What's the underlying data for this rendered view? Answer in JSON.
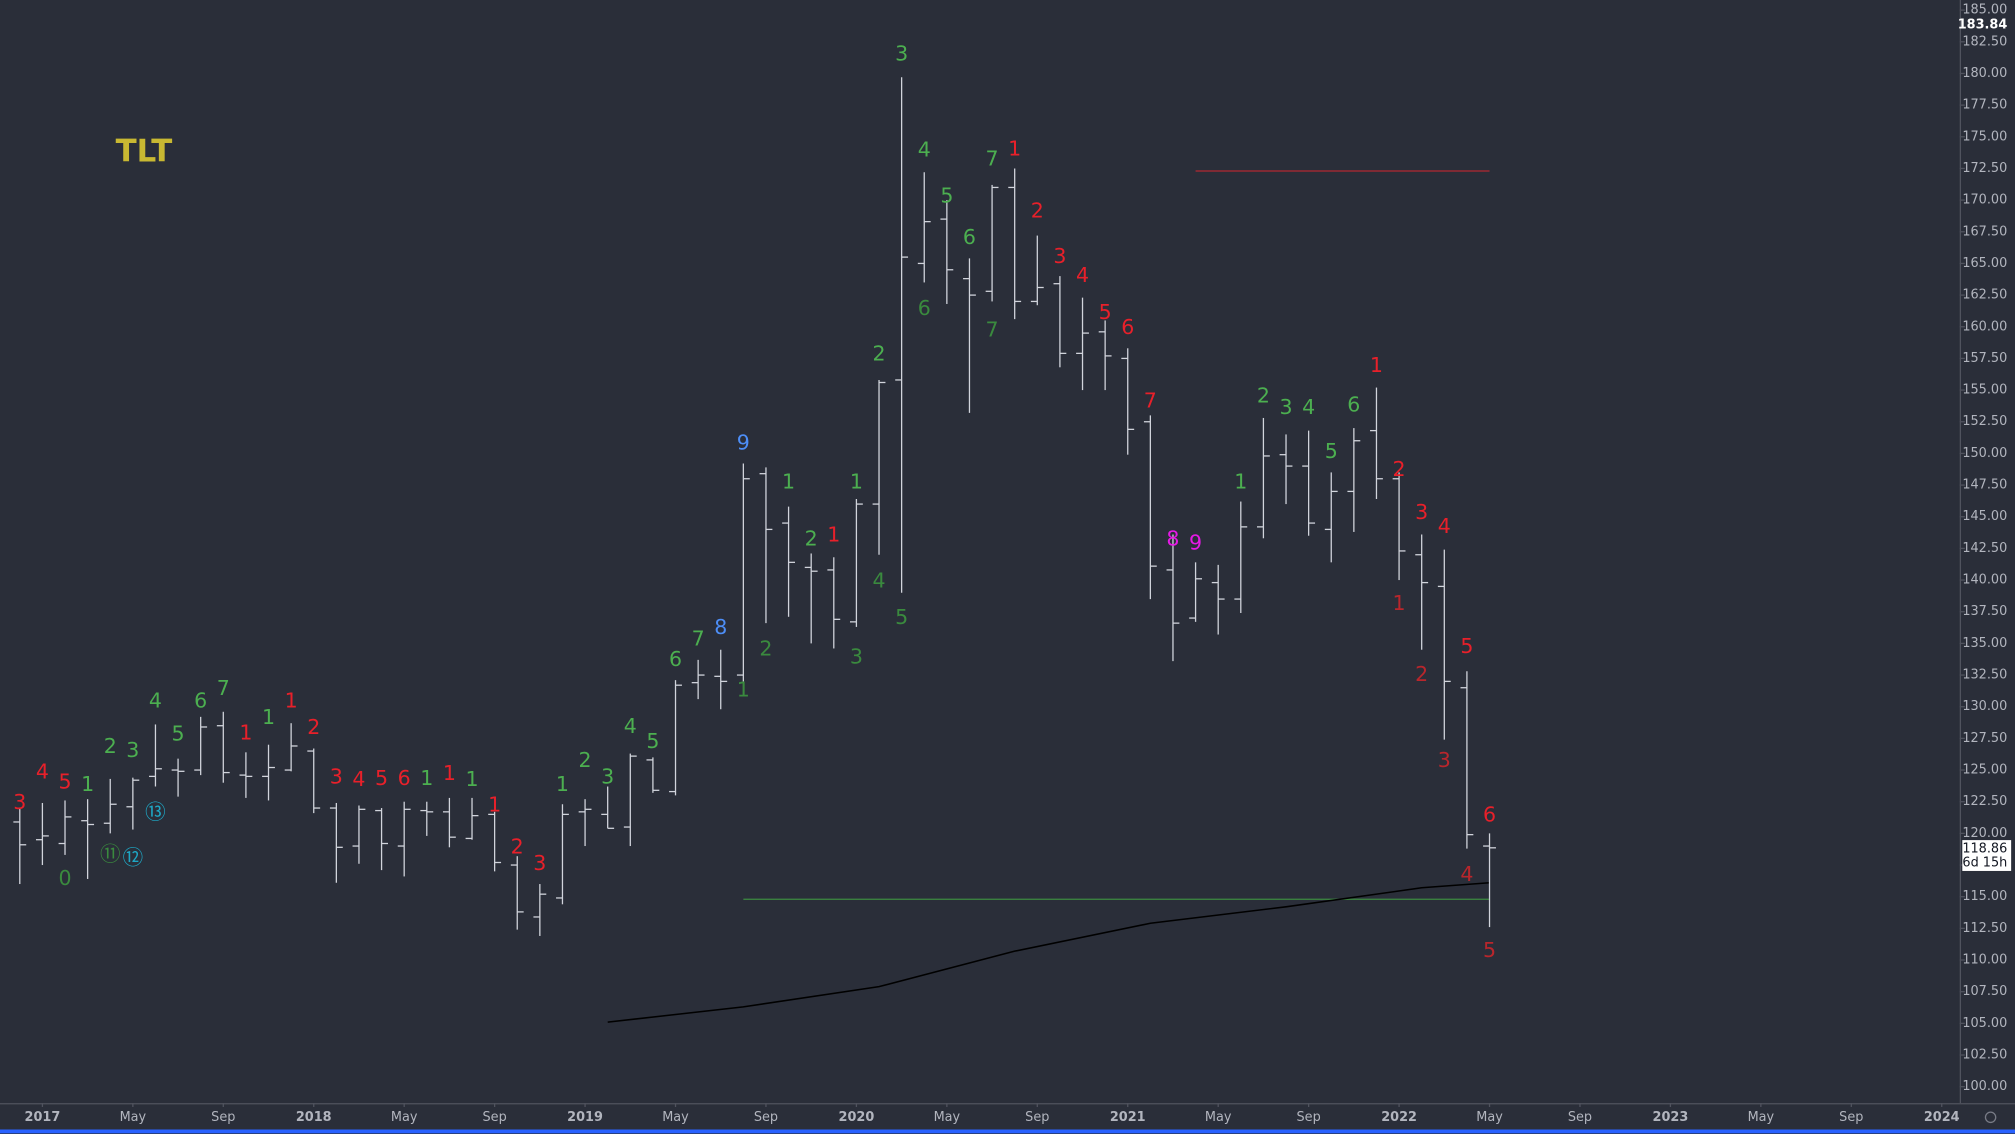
{
  "chart_data": {
    "type": "ohlc",
    "title": "TLT",
    "bar_color": "#d1d4dc",
    "x": [
      "2016-12",
      "2017-01",
      "2017-02",
      "2017-03",
      "2017-04",
      "2017-05",
      "2017-06",
      "2017-07",
      "2017-08",
      "2017-09",
      "2017-10",
      "2017-11",
      "2017-12",
      "2018-01",
      "2018-02",
      "2018-03",
      "2018-04",
      "2018-05",
      "2018-06",
      "2018-07",
      "2018-08",
      "2018-09",
      "2018-10",
      "2018-11",
      "2018-12",
      "2019-01",
      "2019-02",
      "2019-03",
      "2019-04",
      "2019-05",
      "2019-06",
      "2019-07",
      "2019-08",
      "2019-09",
      "2019-10",
      "2019-11",
      "2019-12",
      "2020-01",
      "2020-02",
      "2020-03",
      "2020-04",
      "2020-05",
      "2020-06",
      "2020-07",
      "2020-08",
      "2020-09",
      "2020-10",
      "2020-11",
      "2020-12",
      "2021-01",
      "2021-02",
      "2021-03",
      "2021-04",
      "2021-05",
      "2021-06",
      "2021-07",
      "2021-08",
      "2021-09",
      "2021-10",
      "2021-11",
      "2021-12",
      "2022-01",
      "2022-02",
      "2022-03",
      "2022-04",
      "2022-05"
    ],
    "open": [
      120.9,
      119.5,
      119.2,
      121.0,
      120.8,
      122.1,
      124.5,
      125.0,
      125.0,
      128.5,
      124.6,
      124.5,
      125.0,
      126.5,
      122.0,
      119.0,
      121.8,
      119.0,
      121.8,
      121.7,
      119.6,
      121.5,
      117.5,
      113.4,
      114.9,
      121.7,
      121.5,
      120.5,
      125.8,
      123.3,
      131.9,
      132.4,
      132.5,
      148.4,
      144.5,
      141.0,
      140.8,
      136.7,
      146.0,
      155.8,
      165.0,
      168.5,
      163.8,
      162.8,
      171.0,
      162.0,
      163.4,
      157.9,
      159.6,
      157.5,
      152.5,
      140.8,
      137.0,
      139.8,
      138.5,
      144.2,
      149.9,
      149.0,
      144.0,
      147.0,
      151.8,
      148.0,
      142.0,
      139.5,
      131.5,
      119.0
    ],
    "high": [
      122.0,
      122.4,
      122.6,
      122.7,
      124.3,
      124.4,
      128.6,
      125.9,
      129.2,
      129.6,
      126.4,
      127.0,
      128.7,
      126.7,
      122.4,
      122.2,
      122.0,
      122.5,
      122.5,
      122.8,
      122.8,
      121.7,
      118.2,
      116.0,
      122.3,
      122.7,
      123.7,
      126.3,
      126.0,
      132.1,
      133.7,
      134.5,
      149.2,
      148.9,
      145.8,
      142.1,
      141.8,
      146.4,
      155.8,
      179.7,
      172.2,
      170.0,
      165.4,
      171.2,
      172.5,
      167.2,
      164.0,
      162.3,
      160.5,
      158.3,
      153.0,
      143.6,
      141.4,
      141.2,
      146.2,
      152.8,
      151.5,
      151.8,
      148.5,
      152.0,
      155.2,
      148.5,
      143.6,
      142.4,
      132.8,
      120.0
    ],
    "low": [
      116.0,
      117.5,
      118.3,
      116.4,
      120.0,
      120.3,
      123.7,
      122.9,
      124.6,
      124.0,
      122.8,
      122.6,
      124.9,
      121.6,
      116.1,
      117.6,
      117.1,
      116.6,
      119.8,
      118.9,
      119.5,
      117.0,
      112.4,
      111.9,
      114.4,
      119.0,
      120.4,
      119.0,
      123.2,
      123.0,
      130.6,
      129.8,
      132.0,
      136.6,
      137.1,
      135.0,
      134.6,
      136.3,
      142.0,
      139.0,
      163.5,
      161.8,
      153.2,
      162.0,
      160.6,
      161.7,
      156.8,
      155.0,
      155.0,
      149.9,
      138.5,
      133.6,
      136.7,
      135.7,
      137.4,
      143.3,
      146.0,
      143.5,
      141.4,
      143.8,
      146.4,
      140.0,
      134.5,
      127.4,
      118.8,
      112.6
    ],
    "close": [
      119.1,
      119.8,
      121.3,
      120.7,
      122.3,
      124.2,
      125.1,
      124.9,
      128.4,
      124.8,
      124.5,
      125.2,
      126.9,
      122.0,
      118.9,
      121.9,
      119.2,
      121.9,
      121.7,
      119.7,
      121.4,
      117.7,
      113.8,
      115.2,
      121.5,
      121.9,
      120.4,
      126.1,
      123.4,
      131.7,
      132.5,
      132.0,
      148.0,
      144.0,
      141.4,
      140.7,
      136.9,
      146.0,
      155.6,
      165.5,
      168.3,
      164.5,
      162.5,
      171.0,
      162.0,
      163.1,
      157.9,
      159.5,
      157.7,
      151.9,
      141.1,
      136.6,
      140.1,
      138.5,
      144.2,
      149.8,
      149.0,
      144.5,
      147.0,
      151.0,
      148.0,
      142.3,
      139.8,
      132.0,
      119.9,
      118.86
    ],
    "moving_average": {
      "x": [
        "2019-02",
        "2019-08",
        "2020-02",
        "2020-08",
        "2021-02",
        "2021-08",
        "2022-02",
        "2022-05"
      ],
      "values": [
        105.1,
        106.3,
        107.9,
        110.7,
        112.9,
        114.2,
        115.7,
        116.1
      ],
      "color": "#000000"
    },
    "hlines": [
      {
        "y": 172.3,
        "x": [
          "2021-04",
          "2022-05"
        ],
        "color": "#b22833"
      },
      {
        "y": 114.8,
        "x": [
          "2019-08",
          "2022-05"
        ],
        "color": "#3d8b40"
      }
    ],
    "annotations": [
      {
        "text": "3",
        "x": "2016-12",
        "y": 122.4,
        "color": "#e8202a"
      },
      {
        "text": "4",
        "x": "2017-01",
        "y": 124.8,
        "color": "#e8202a"
      },
      {
        "text": "5",
        "x": "2017-02",
        "y": 124.0,
        "color": "#e8202a"
      },
      {
        "text": "0",
        "x": "2017-02",
        "y": 116.4,
        "color": "#3a8a3e"
      },
      {
        "text": "1",
        "x": "2017-03",
        "y": 123.8,
        "color": "#4caf50"
      },
      {
        "text": "⑪",
        "x": "2017-04",
        "y": 118.3,
        "color": "#3a8a3e"
      },
      {
        "text": "2",
        "x": "2017-04",
        "y": 126.8,
        "color": "#4caf50"
      },
      {
        "text": "⑫",
        "x": "2017-05",
        "y": 118.0,
        "color": "#1ea7c5"
      },
      {
        "text": "3",
        "x": "2017-05",
        "y": 126.5,
        "color": "#4caf50"
      },
      {
        "text": "⑬",
        "x": "2017-06",
        "y": 121.6,
        "color": "#1ea7c5"
      },
      {
        "text": "4",
        "x": "2017-06",
        "y": 130.4,
        "color": "#4caf50"
      },
      {
        "text": "5",
        "x": "2017-07",
        "y": 127.8,
        "color": "#4caf50"
      },
      {
        "text": "6",
        "x": "2017-08",
        "y": 130.4,
        "color": "#4caf50"
      },
      {
        "text": "7",
        "x": "2017-09",
        "y": 131.4,
        "color": "#4caf50"
      },
      {
        "text": "1",
        "x": "2017-10",
        "y": 127.9,
        "color": "#e8202a"
      },
      {
        "text": "1",
        "x": "2017-11",
        "y": 129.1,
        "color": "#4caf50"
      },
      {
        "text": "1",
        "x": "2017-12",
        "y": 130.4,
        "color": "#e8202a"
      },
      {
        "text": "2",
        "x": "2018-01",
        "y": 128.3,
        "color": "#e8202a"
      },
      {
        "text": "3",
        "x": "2018-02",
        "y": 124.4,
        "color": "#e8202a"
      },
      {
        "text": "4",
        "x": "2018-03",
        "y": 124.2,
        "color": "#e8202a"
      },
      {
        "text": "5",
        "x": "2018-04",
        "y": 124.3,
        "color": "#e8202a"
      },
      {
        "text": "6",
        "x": "2018-05",
        "y": 124.3,
        "color": "#e8202a"
      },
      {
        "text": "1",
        "x": "2018-06",
        "y": 124.3,
        "color": "#4caf50"
      },
      {
        "text": "1",
        "x": "2018-07",
        "y": 124.7,
        "color": "#e8202a"
      },
      {
        "text": "1",
        "x": "2018-08",
        "y": 124.2,
        "color": "#4caf50"
      },
      {
        "text": "1",
        "x": "2018-09",
        "y": 122.2,
        "color": "#e8202a"
      },
      {
        "text": "2",
        "x": "2018-10",
        "y": 118.9,
        "color": "#e8202a"
      },
      {
        "text": "3",
        "x": "2018-11",
        "y": 117.6,
        "color": "#e8202a"
      },
      {
        "text": "1",
        "x": "2018-12",
        "y": 123.8,
        "color": "#4caf50"
      },
      {
        "text": "2",
        "x": "2019-01",
        "y": 125.7,
        "color": "#4caf50"
      },
      {
        "text": "3",
        "x": "2019-02",
        "y": 124.4,
        "color": "#4caf50"
      },
      {
        "text": "4",
        "x": "2019-03",
        "y": 128.4,
        "color": "#4caf50"
      },
      {
        "text": "5",
        "x": "2019-04",
        "y": 127.2,
        "color": "#4caf50"
      },
      {
        "text": "6",
        "x": "2019-05",
        "y": 133.7,
        "color": "#4caf50"
      },
      {
        "text": "7",
        "x": "2019-06",
        "y": 135.3,
        "color": "#4caf50"
      },
      {
        "text": "8",
        "x": "2019-07",
        "y": 136.2,
        "color": "#4d8ef7"
      },
      {
        "text": "9",
        "x": "2019-08",
        "y": 150.8,
        "color": "#4d8ef7"
      },
      {
        "text": "1",
        "x": "2019-08",
        "y": 131.3,
        "color": "#3a8a3e"
      },
      {
        "text": "2",
        "x": "2019-09",
        "y": 134.5,
        "color": "#3a8a3e"
      },
      {
        "text": "1",
        "x": "2019-10",
        "y": 147.7,
        "color": "#4caf50"
      },
      {
        "text": "2",
        "x": "2019-11",
        "y": 143.2,
        "color": "#4caf50"
      },
      {
        "text": "1",
        "x": "2019-12",
        "y": 143.5,
        "color": "#e8202a"
      },
      {
        "text": "3",
        "x": "2020-01",
        "y": 133.9,
        "color": "#3a8a3e"
      },
      {
        "text": "1",
        "x": "2020-01",
        "y": 147.7,
        "color": "#4caf50"
      },
      {
        "text": "4",
        "x": "2020-02",
        "y": 139.9,
        "color": "#3a8a3e"
      },
      {
        "text": "2",
        "x": "2020-02",
        "y": 157.8,
        "color": "#4caf50"
      },
      {
        "text": "3",
        "x": "2020-03",
        "y": 181.5,
        "color": "#4caf50"
      },
      {
        "text": "5",
        "x": "2020-03",
        "y": 137.0,
        "color": "#3a8a3e"
      },
      {
        "text": "4",
        "x": "2020-04",
        "y": 173.9,
        "color": "#4caf50"
      },
      {
        "text": "6",
        "x": "2020-04",
        "y": 161.4,
        "color": "#3a8a3e"
      },
      {
        "text": "5",
        "x": "2020-05",
        "y": 170.3,
        "color": "#4caf50"
      },
      {
        "text": "6",
        "x": "2020-06",
        "y": 167.0,
        "color": "#4caf50"
      },
      {
        "text": "7",
        "x": "2020-07",
        "y": 173.2,
        "color": "#4caf50"
      },
      {
        "text": "7",
        "x": "2020-07",
        "y": 159.7,
        "color": "#3a8a3e"
      },
      {
        "text": "1",
        "x": "2020-08",
        "y": 174.0,
        "color": "#e8202a"
      },
      {
        "text": "2",
        "x": "2020-09",
        "y": 169.1,
        "color": "#e8202a"
      },
      {
        "text": "3",
        "x": "2020-10",
        "y": 165.5,
        "color": "#e8202a"
      },
      {
        "text": "4",
        "x": "2020-11",
        "y": 164.0,
        "color": "#e8202a"
      },
      {
        "text": "5",
        "x": "2020-12",
        "y": 161.1,
        "color": "#e8202a"
      },
      {
        "text": "6",
        "x": "2021-01",
        "y": 159.9,
        "color": "#e8202a"
      },
      {
        "text": "7",
        "x": "2021-02",
        "y": 154.1,
        "color": "#e8202a"
      },
      {
        "text": "8",
        "x": "2021-03",
        "y": 143.2,
        "color": "#e619e6"
      },
      {
        "text": "9",
        "x": "2021-04",
        "y": 142.9,
        "color": "#e619e6"
      },
      {
        "text": "1",
        "x": "2021-06",
        "y": 147.7,
        "color": "#4caf50"
      },
      {
        "text": "2",
        "x": "2021-07",
        "y": 154.5,
        "color": "#4caf50"
      },
      {
        "text": "3",
        "x": "2021-08",
        "y": 153.6,
        "color": "#4caf50"
      },
      {
        "text": "4",
        "x": "2021-09",
        "y": 153.6,
        "color": "#4caf50"
      },
      {
        "text": "5",
        "x": "2021-10",
        "y": 150.1,
        "color": "#4caf50"
      },
      {
        "text": "6",
        "x": "2021-11",
        "y": 153.8,
        "color": "#4caf50"
      },
      {
        "text": "1",
        "x": "2021-12",
        "y": 156.9,
        "color": "#e8202a"
      },
      {
        "text": "2",
        "x": "2022-01",
        "y": 148.7,
        "color": "#e8202a"
      },
      {
        "text": "1",
        "x": "2022-01",
        "y": 138.1,
        "color": "#b9262c"
      },
      {
        "text": "3",
        "x": "2022-02",
        "y": 145.3,
        "color": "#e8202a"
      },
      {
        "text": "2",
        "x": "2022-02",
        "y": 132.5,
        "color": "#b9262c"
      },
      {
        "text": "4",
        "x": "2022-03",
        "y": 144.2,
        "color": "#e8202a"
      },
      {
        "text": "3",
        "x": "2022-03",
        "y": 125.7,
        "color": "#b9262c"
      },
      {
        "text": "5",
        "x": "2022-04",
        "y": 134.7,
        "color": "#e8202a"
      },
      {
        "text": "4",
        "x": "2022-04",
        "y": 116.7,
        "color": "#b9262c"
      },
      {
        "text": "6",
        "x": "2022-05",
        "y": 121.4,
        "color": "#e8202a"
      },
      {
        "text": "5",
        "x": "2022-05",
        "y": 110.7,
        "color": "#b9262c"
      }
    ],
    "last_price": 118.86,
    "countdown": "6d 15h",
    "axis_marker": 183.84,
    "xlim": [
      "2016-12",
      "2024-01"
    ],
    "xticks": [
      {
        "value": "2017-01",
        "label": "2017"
      },
      {
        "value": "2017-05",
        "label": "May"
      },
      {
        "value": "2017-09",
        "label": "Sep"
      },
      {
        "value": "2018-01",
        "label": "2018"
      },
      {
        "value": "2018-05",
        "label": "May"
      },
      {
        "value": "2018-09",
        "label": "Sep"
      },
      {
        "value": "2019-01",
        "label": "2019"
      },
      {
        "value": "2019-05",
        "label": "May"
      },
      {
        "value": "2019-09",
        "label": "Sep"
      },
      {
        "value": "2020-01",
        "label": "2020"
      },
      {
        "value": "2020-05",
        "label": "May"
      },
      {
        "value": "2020-09",
        "label": "Sep"
      },
      {
        "value": "2021-01",
        "label": "2021"
      },
      {
        "value": "2021-05",
        "label": "May"
      },
      {
        "value": "2021-09",
        "label": "Sep"
      },
      {
        "value": "2022-01",
        "label": "2022"
      },
      {
        "value": "2022-05",
        "label": "May"
      },
      {
        "value": "2022-09",
        "label": "Sep"
      },
      {
        "value": "2023-01",
        "label": "2023"
      },
      {
        "value": "2023-05",
        "label": "May"
      },
      {
        "value": "2023-09",
        "label": "Sep"
      },
      {
        "value": "2024-01",
        "label": "2024"
      }
    ],
    "ylim": [
      98.7,
      185.8
    ],
    "yticks": [
      {
        "value": 100,
        "label": "100.00"
      },
      {
        "value": 102.5,
        "label": "102.50"
      },
      {
        "value": 105,
        "label": "105.00"
      },
      {
        "value": 107.5,
        "label": "107.50"
      },
      {
        "value": 110,
        "label": "110.00"
      },
      {
        "value": 112.5,
        "label": "112.50"
      },
      {
        "value": 115,
        "label": "115.00"
      },
      {
        "value": 117.5,
        "label": "117.50"
      },
      {
        "value": 120,
        "label": "120.00"
      },
      {
        "value": 122.5,
        "label": "122.50"
      },
      {
        "value": 125,
        "label": "125.00"
      },
      {
        "value": 127.5,
        "label": "127.50"
      },
      {
        "value": 130,
        "label": "130.00"
      },
      {
        "value": 132.5,
        "label": "132.50"
      },
      {
        "value": 135,
        "label": "135.00"
      },
      {
        "value": 137.5,
        "label": "137.50"
      },
      {
        "value": 140,
        "label": "140.00"
      },
      {
        "value": 142.5,
        "label": "142.50"
      },
      {
        "value": 145,
        "label": "145.00"
      },
      {
        "value": 147.5,
        "label": "147.50"
      },
      {
        "value": 150,
        "label": "150.00"
      },
      {
        "value": 152.5,
        "label": "152.50"
      },
      {
        "value": 155,
        "label": "155.00"
      },
      {
        "value": 157.5,
        "label": "157.50"
      },
      {
        "value": 160,
        "label": "160.00"
      },
      {
        "value": 162.5,
        "label": "162.50"
      },
      {
        "value": 165,
        "label": "165.00"
      },
      {
        "value": 167.5,
        "label": "167.50"
      },
      {
        "value": 170,
        "label": "170.00"
      },
      {
        "value": 172.5,
        "label": "172.50"
      },
      {
        "value": 175,
        "label": "175.00"
      },
      {
        "value": 177.5,
        "label": "177.50"
      },
      {
        "value": 180,
        "label": "180.00"
      },
      {
        "value": 182.5,
        "label": "182.50"
      },
      {
        "value": 185,
        "label": "185.00"
      }
    ]
  }
}
